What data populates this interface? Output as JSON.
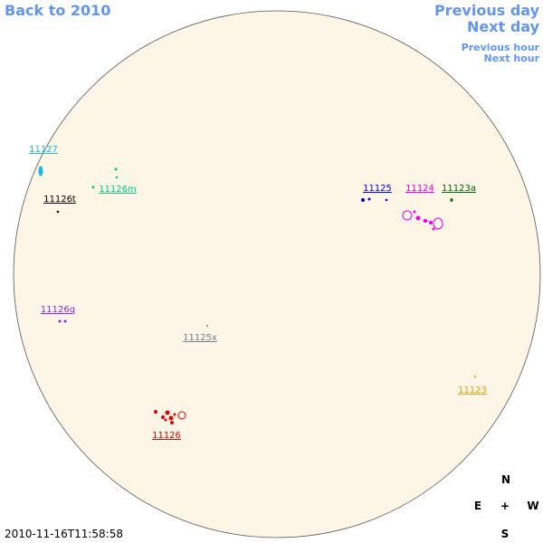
{
  "nav": {
    "back": "Back to 2010",
    "previous_day": "Previous day",
    "next_day": "Next day",
    "previous_hour": "Previous hour",
    "next_hour": "Next hour"
  },
  "regions": [
    {
      "label": "11127",
      "color": "#1ab8e6"
    },
    {
      "label": "11126m",
      "color": "#00cc88"
    },
    {
      "label": "11126t",
      "color": "#000000"
    },
    {
      "label": "11125",
      "color": "#0000cc"
    },
    {
      "label": "11124",
      "color": "#e600e6"
    },
    {
      "label": "11123a",
      "color": "#006400"
    },
    {
      "label": "11126q",
      "color": "#8a2be2"
    },
    {
      "label": "11125x",
      "color": "#708090"
    },
    {
      "label": "11123",
      "color": "#ff9900"
    },
    {
      "label": "11126",
      "color": "#dd0000"
    }
  ],
  "compass": {
    "north": "N",
    "east": "E",
    "center": "+",
    "west": "W",
    "south": "S"
  },
  "timestamp": "2010-11-16T11:58:58"
}
